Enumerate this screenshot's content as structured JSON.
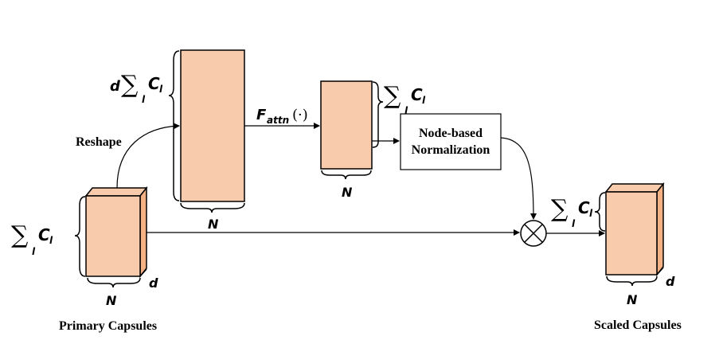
{
  "labels": {
    "reshape": "Reshape",
    "primary_capsules": "Primary Capsules",
    "scaled_capsules": "Scaled Capsules",
    "normalization_line1": "Node-based",
    "normalization_line2": "Normalization",
    "n": "N",
    "d": "d",
    "sum": "∑",
    "sub_l": "l",
    "c": "C",
    "f_attn_f": "F",
    "f_attn_sub": "attn",
    "f_attn_arg": "(·)"
  },
  "colors": {
    "box_fill": "#f8cbad",
    "box_side": "#f4b183",
    "stroke": "#000000"
  },
  "icons": {
    "multiply": "circled-times-icon"
  }
}
